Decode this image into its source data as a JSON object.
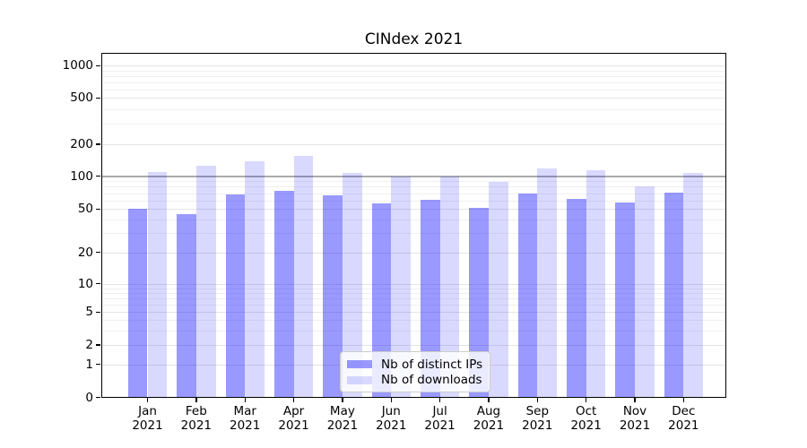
{
  "chart_data": {
    "type": "bar",
    "title": "CINdex 2021",
    "yscale": "symlog",
    "grid": true,
    "legend_position": "lower center",
    "categories": [
      "Jan 2021",
      "Feb 2021",
      "Mar 2021",
      "Apr 2021",
      "May 2021",
      "Jun 2021",
      "Jul 2021",
      "Aug 2021",
      "Sep 2021",
      "Oct 2021",
      "Nov 2021",
      "Dec 2021"
    ],
    "series": [
      {
        "name": "Nb of distinct IPs",
        "color": "rgba(0,0,255,0.4)",
        "color_on_white_hex": "#9999ff",
        "values": [
          50,
          45,
          68,
          74,
          67,
          56,
          61,
          51,
          69,
          62,
          57,
          71
        ]
      },
      {
        "name": "Nb of downloads",
        "color": "rgba(0,0,255,0.15)",
        "color_on_white_hex": "#d9d9ff",
        "values": [
          110,
          126,
          137,
          154,
          107,
          100,
          100,
          88,
          118,
          114,
          80,
          107
        ]
      }
    ],
    "y_ticks": [
      0,
      1,
      2,
      5,
      10,
      20,
      50,
      100,
      200,
      500,
      1000
    ],
    "y_tick_labels": [
      "0",
      "1",
      "2",
      "5",
      "10",
      "20",
      "50",
      "100",
      "200",
      "500",
      "1000"
    ],
    "y_minor_gridlines": [
      3,
      4,
      6,
      7,
      8,
      9,
      30,
      40,
      60,
      70,
      80,
      90,
      300,
      400,
      600,
      700,
      800,
      900
    ],
    "emphasized_gridline": 100,
    "ylim": [
      0,
      1300
    ]
  }
}
